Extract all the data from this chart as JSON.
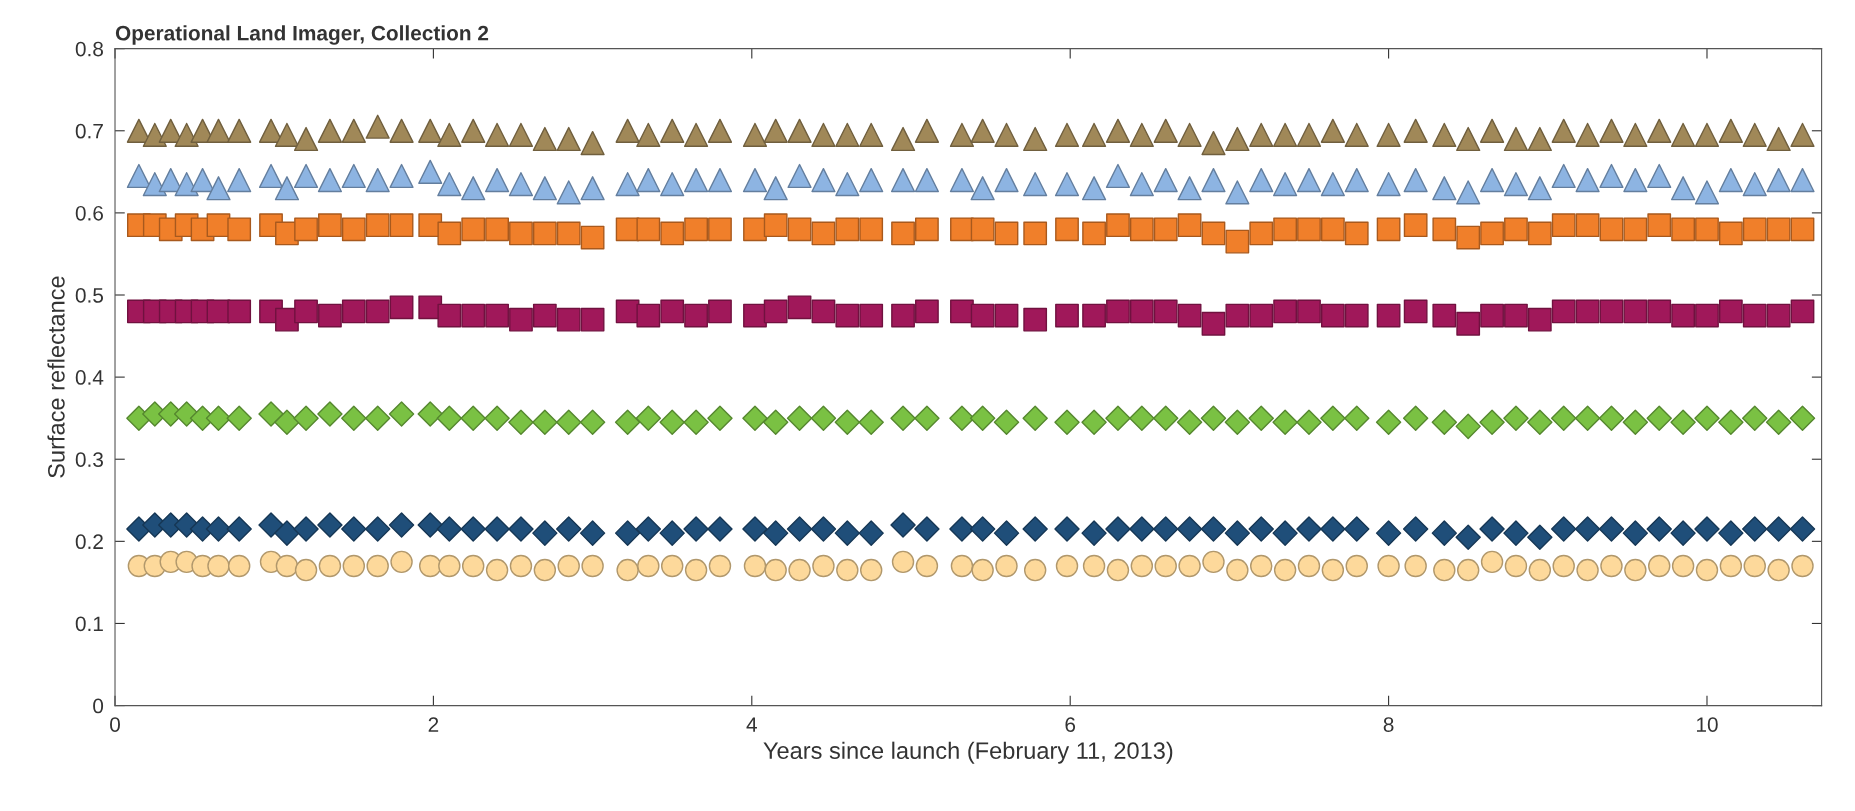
{
  "chart_data": {
    "type": "scatter",
    "title": "Operational Land Imager, Collection 2",
    "xlabel": "Years since launch (February 11, 2013)",
    "ylabel": "Surface reflectance",
    "xlim": [
      0,
      10.72
    ],
    "xticks": [
      0,
      2,
      4,
      6,
      8,
      10
    ],
    "ylim": [
      0,
      0.8
    ],
    "yticks": [
      0,
      0.1,
      0.2,
      0.3,
      0.4,
      0.5,
      0.6,
      0.7,
      0.8
    ],
    "grid": false,
    "x": [
      0.15,
      0.25,
      0.35,
      0.45,
      0.55,
      0.65,
      0.78,
      0.98,
      1.08,
      1.2,
      1.35,
      1.5,
      1.65,
      1.8,
      1.98,
      2.1,
      2.25,
      2.4,
      2.55,
      2.7,
      2.85,
      3.0,
      3.22,
      3.35,
      3.5,
      3.65,
      3.8,
      4.02,
      4.15,
      4.3,
      4.45,
      4.6,
      4.75,
      4.95,
      5.1,
      5.32,
      5.45,
      5.6,
      5.78,
      5.98,
      6.15,
      6.3,
      6.45,
      6.6,
      6.75,
      6.9,
      7.05,
      7.2,
      7.35,
      7.5,
      7.65,
      7.8,
      8.0,
      8.17,
      8.35,
      8.5,
      8.65,
      8.8,
      8.95,
      9.1,
      9.25,
      9.4,
      9.55,
      9.7,
      9.85,
      10.0,
      10.15,
      10.3,
      10.45,
      10.6
    ],
    "series": [
      {
        "color": "#a08858",
        "marker": "triangle",
        "values": [
          0.7,
          0.695,
          0.7,
          0.695,
          0.7,
          0.7,
          0.7,
          0.7,
          0.695,
          0.69,
          0.7,
          0.7,
          0.705,
          0.7,
          0.7,
          0.695,
          0.7,
          0.695,
          0.695,
          0.69,
          0.69,
          0.685,
          0.7,
          0.695,
          0.7,
          0.695,
          0.7,
          0.695,
          0.7,
          0.7,
          0.695,
          0.695,
          0.695,
          0.69,
          0.7,
          0.695,
          0.7,
          0.695,
          0.69,
          0.695,
          0.695,
          0.7,
          0.695,
          0.7,
          0.695,
          0.685,
          0.69,
          0.695,
          0.695,
          0.695,
          0.7,
          0.695,
          0.695,
          0.7,
          0.695,
          0.69,
          0.7,
          0.69,
          0.69,
          0.7,
          0.695,
          0.7,
          0.695,
          0.7,
          0.695,
          0.695,
          0.7,
          0.695,
          0.69,
          0.695
        ]
      },
      {
        "color": "#8db4e2",
        "marker": "triangle",
        "values": [
          0.645,
          0.635,
          0.64,
          0.635,
          0.64,
          0.63,
          0.64,
          0.645,
          0.63,
          0.645,
          0.64,
          0.645,
          0.64,
          0.645,
          0.65,
          0.635,
          0.63,
          0.64,
          0.635,
          0.63,
          0.625,
          0.63,
          0.635,
          0.64,
          0.635,
          0.64,
          0.64,
          0.64,
          0.63,
          0.645,
          0.64,
          0.635,
          0.64,
          0.64,
          0.64,
          0.64,
          0.63,
          0.64,
          0.635,
          0.635,
          0.63,
          0.645,
          0.635,
          0.64,
          0.63,
          0.64,
          0.625,
          0.64,
          0.635,
          0.64,
          0.635,
          0.64,
          0.635,
          0.64,
          0.63,
          0.625,
          0.64,
          0.635,
          0.63,
          0.645,
          0.64,
          0.645,
          0.64,
          0.645,
          0.63,
          0.625,
          0.64,
          0.635,
          0.64,
          0.64
        ]
      },
      {
        "color": "#f07f2a",
        "marker": "square",
        "values": [
          0.585,
          0.585,
          0.58,
          0.585,
          0.58,
          0.585,
          0.58,
          0.585,
          0.575,
          0.58,
          0.585,
          0.58,
          0.585,
          0.585,
          0.585,
          0.575,
          0.58,
          0.58,
          0.575,
          0.575,
          0.575,
          0.57,
          0.58,
          0.58,
          0.575,
          0.58,
          0.58,
          0.58,
          0.585,
          0.58,
          0.575,
          0.58,
          0.58,
          0.575,
          0.58,
          0.58,
          0.58,
          0.575,
          0.575,
          0.58,
          0.575,
          0.585,
          0.58,
          0.58,
          0.585,
          0.575,
          0.565,
          0.575,
          0.58,
          0.58,
          0.58,
          0.575,
          0.58,
          0.585,
          0.58,
          0.57,
          0.575,
          0.58,
          0.575,
          0.585,
          0.585,
          0.58,
          0.58,
          0.585,
          0.58,
          0.58,
          0.575,
          0.58,
          0.58,
          0.58
        ]
      },
      {
        "color": "#a0185a",
        "marker": "square",
        "values": [
          0.48,
          0.48,
          0.48,
          0.48,
          0.48,
          0.48,
          0.48,
          0.48,
          0.47,
          0.48,
          0.475,
          0.48,
          0.48,
          0.485,
          0.485,
          0.475,
          0.475,
          0.475,
          0.47,
          0.475,
          0.47,
          0.47,
          0.48,
          0.475,
          0.48,
          0.475,
          0.48,
          0.475,
          0.48,
          0.485,
          0.48,
          0.475,
          0.475,
          0.475,
          0.48,
          0.48,
          0.475,
          0.475,
          0.47,
          0.475,
          0.475,
          0.48,
          0.48,
          0.48,
          0.475,
          0.465,
          0.475,
          0.475,
          0.48,
          0.48,
          0.475,
          0.475,
          0.475,
          0.48,
          0.475,
          0.465,
          0.475,
          0.475,
          0.47,
          0.48,
          0.48,
          0.48,
          0.48,
          0.48,
          0.475,
          0.475,
          0.48,
          0.475,
          0.475,
          0.48
        ]
      },
      {
        "color": "#7ac143",
        "marker": "diamond",
        "values": [
          0.35,
          0.355,
          0.355,
          0.355,
          0.35,
          0.35,
          0.35,
          0.355,
          0.345,
          0.35,
          0.355,
          0.35,
          0.35,
          0.355,
          0.355,
          0.35,
          0.35,
          0.35,
          0.345,
          0.345,
          0.345,
          0.345,
          0.345,
          0.35,
          0.345,
          0.345,
          0.35,
          0.35,
          0.345,
          0.35,
          0.35,
          0.345,
          0.345,
          0.35,
          0.35,
          0.35,
          0.35,
          0.345,
          0.35,
          0.345,
          0.345,
          0.35,
          0.35,
          0.35,
          0.345,
          0.35,
          0.345,
          0.35,
          0.345,
          0.345,
          0.35,
          0.35,
          0.345,
          0.35,
          0.345,
          0.34,
          0.345,
          0.35,
          0.345,
          0.35,
          0.35,
          0.35,
          0.345,
          0.35,
          0.345,
          0.35,
          0.345,
          0.35,
          0.345,
          0.35
        ]
      },
      {
        "color": "#1f4e79",
        "marker": "diamond",
        "values": [
          0.215,
          0.22,
          0.22,
          0.22,
          0.215,
          0.215,
          0.215,
          0.22,
          0.21,
          0.215,
          0.22,
          0.215,
          0.215,
          0.22,
          0.22,
          0.215,
          0.215,
          0.215,
          0.215,
          0.21,
          0.215,
          0.21,
          0.21,
          0.215,
          0.21,
          0.215,
          0.215,
          0.215,
          0.21,
          0.215,
          0.215,
          0.21,
          0.21,
          0.22,
          0.215,
          0.215,
          0.215,
          0.21,
          0.215,
          0.215,
          0.21,
          0.215,
          0.215,
          0.215,
          0.215,
          0.215,
          0.21,
          0.215,
          0.21,
          0.215,
          0.215,
          0.215,
          0.21,
          0.215,
          0.21,
          0.205,
          0.215,
          0.21,
          0.205,
          0.215,
          0.215,
          0.215,
          0.21,
          0.215,
          0.21,
          0.215,
          0.21,
          0.215,
          0.215,
          0.215
        ]
      },
      {
        "color": "#fdd99b",
        "marker": "circle",
        "values": [
          0.17,
          0.17,
          0.175,
          0.175,
          0.17,
          0.17,
          0.17,
          0.175,
          0.17,
          0.165,
          0.17,
          0.17,
          0.17,
          0.175,
          0.17,
          0.17,
          0.17,
          0.165,
          0.17,
          0.165,
          0.17,
          0.17,
          0.165,
          0.17,
          0.17,
          0.165,
          0.17,
          0.17,
          0.165,
          0.165,
          0.17,
          0.165,
          0.165,
          0.175,
          0.17,
          0.17,
          0.165,
          0.17,
          0.165,
          0.17,
          0.17,
          0.165,
          0.17,
          0.17,
          0.17,
          0.175,
          0.165,
          0.17,
          0.165,
          0.17,
          0.165,
          0.17,
          0.17,
          0.17,
          0.165,
          0.165,
          0.175,
          0.17,
          0.165,
          0.17,
          0.165,
          0.17,
          0.165,
          0.17,
          0.17,
          0.165,
          0.17,
          0.17,
          0.165,
          0.17
        ]
      }
    ]
  }
}
